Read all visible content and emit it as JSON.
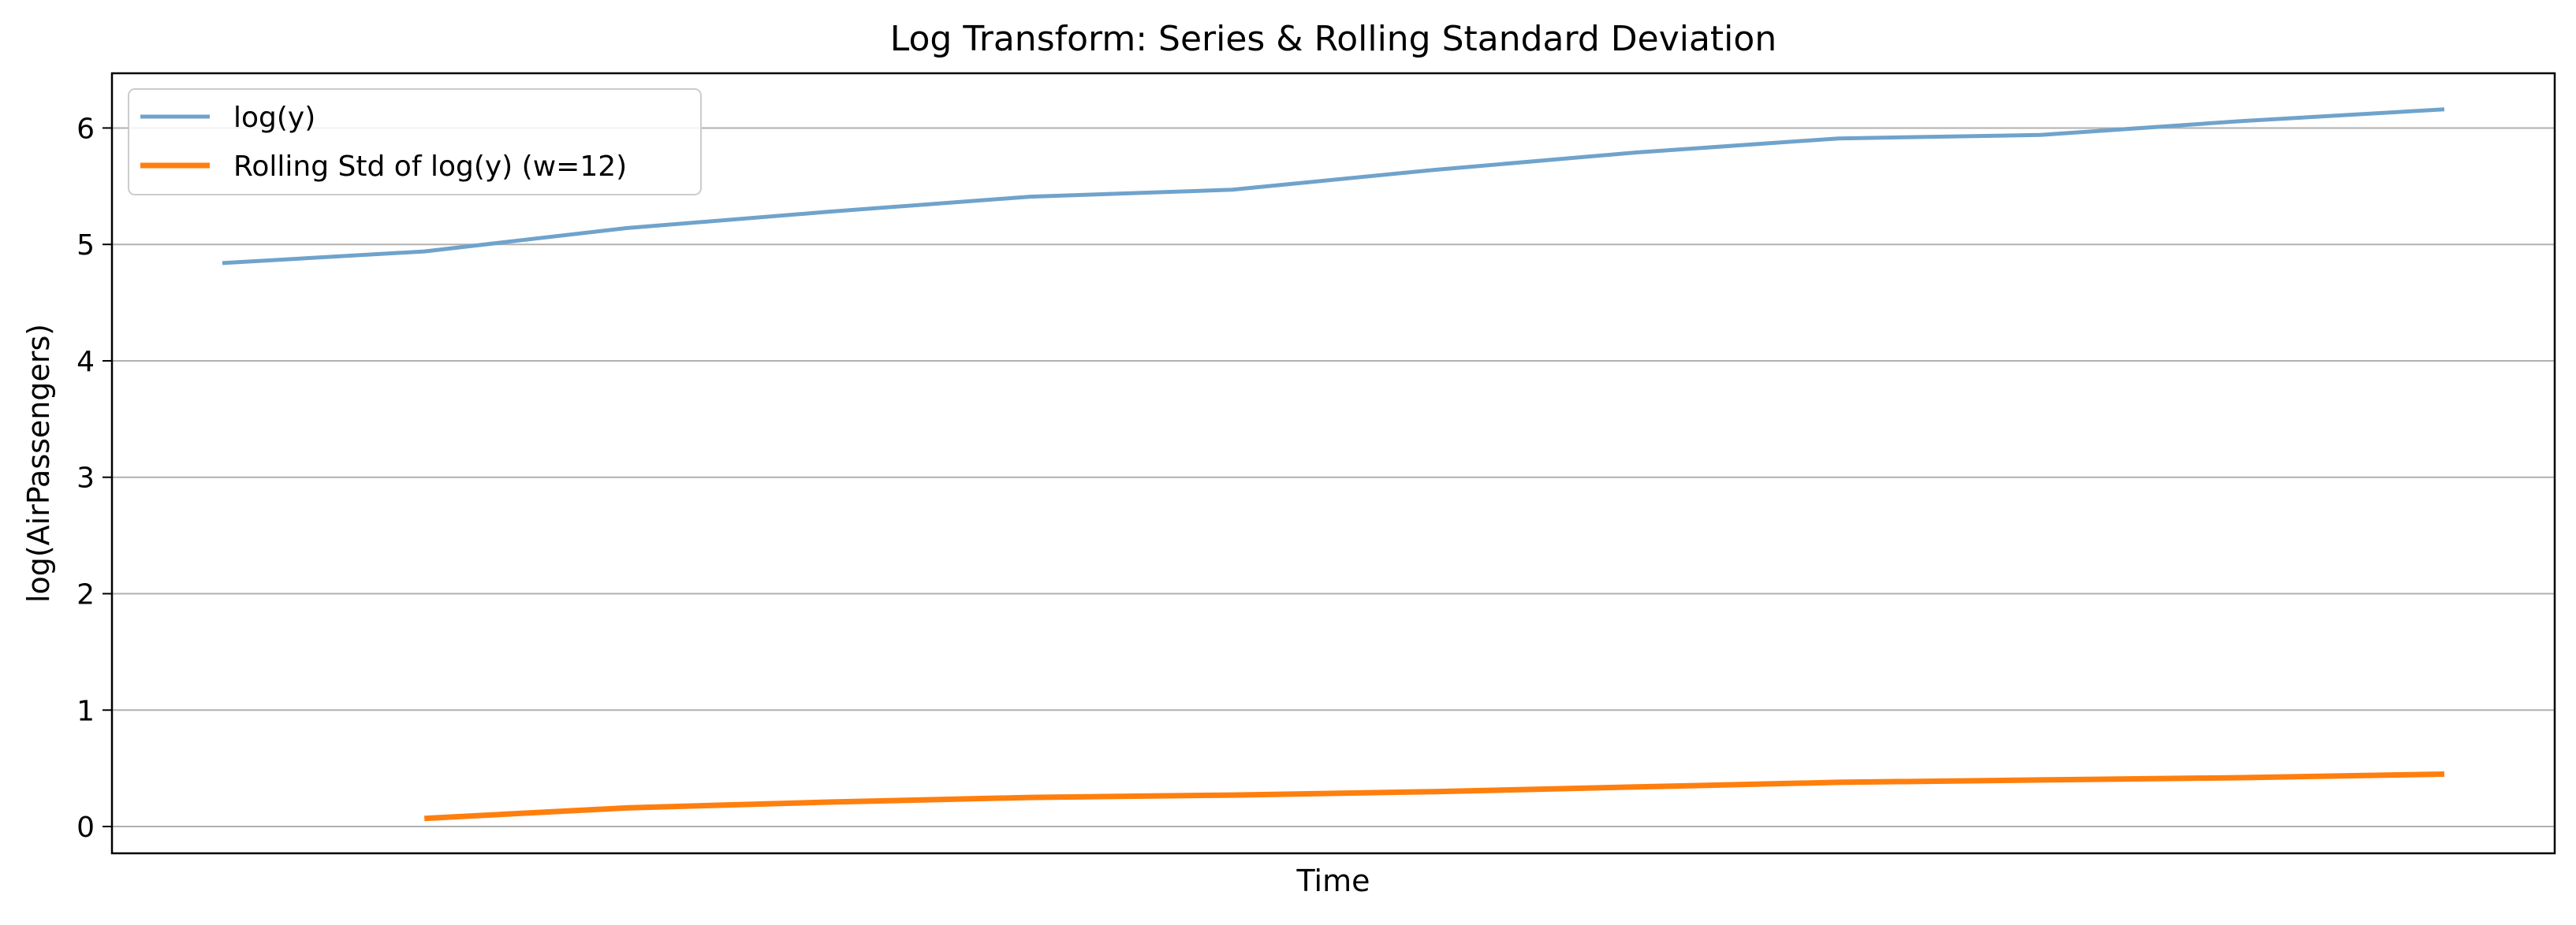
{
  "chart_data": {
    "type": "line",
    "title": "Log Transform: Series & Rolling Standard Deviation",
    "xlabel": "Time",
    "ylabel": "log(AirPassengers)",
    "ylim": [
      -0.23,
      6.47
    ],
    "yticks": [
      0,
      1,
      2,
      3,
      4,
      5,
      6
    ],
    "xticks": [],
    "grid": "horizontal",
    "legend": "top-left",
    "x": [
      1,
      2,
      3,
      4,
      5,
      6,
      7,
      8,
      9,
      10,
      11,
      12
    ],
    "series": [
      {
        "name": "log(y)",
        "color": "#6fa3cc",
        "values": [
          4.84,
          4.94,
          5.14,
          5.28,
          5.41,
          5.47,
          5.64,
          5.79,
          5.91,
          5.94,
          6.06,
          6.16
        ]
      },
      {
        "name": "Rolling Std of log(y) (w=12)",
        "color": "#ff7f0e",
        "values": [
          null,
          0.07,
          0.16,
          0.21,
          0.25,
          0.27,
          0.3,
          0.34,
          0.38,
          0.4,
          0.42,
          0.45
        ]
      }
    ]
  }
}
